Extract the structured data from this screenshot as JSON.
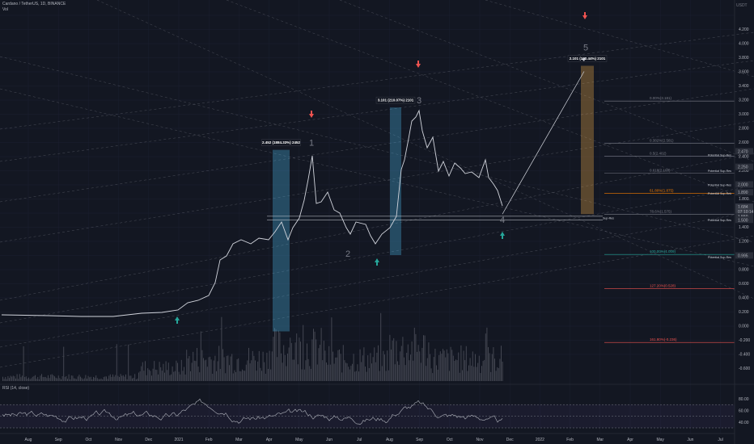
{
  "header": {
    "symbol_title": "Cardano / TetherUS, 1D, BINANCE",
    "volume_label": "Vol",
    "rsi_label": "RSI (14, close)"
  },
  "top_right": {
    "currency": "USDT"
  },
  "price_axis": {
    "ticks": [
      "4.200",
      "4.000",
      "3.800",
      "3.600",
      "3.400",
      "3.200",
      "3.000",
      "2.800",
      "2.600",
      "2.400",
      "2.200",
      "2.000",
      "1.800",
      "1.600",
      "1.400",
      "1.200",
      "1.000",
      "0.800",
      "0.600",
      "0.400",
      "0.200",
      "0.000",
      "-0.200",
      "-0.400",
      "-0.600"
    ],
    "tick_values": [
      4.2,
      4.0,
      3.8,
      3.6,
      3.4,
      3.2,
      3.0,
      2.8,
      2.6,
      2.4,
      2.2,
      2.0,
      1.8,
      1.6,
      1.4,
      1.2,
      1.0,
      0.8,
      0.6,
      0.4,
      0.2,
      0.0,
      -0.2,
      -0.4,
      -0.6
    ],
    "tags": [
      {
        "text": "2.470",
        "value": 2.47,
        "bg": "#2a2e39"
      },
      {
        "text": "2.250",
        "value": 2.25,
        "bg": "#2a2e39"
      },
      {
        "text": "2.000",
        "value": 2.0,
        "bg": "#2a2e39"
      },
      {
        "text": "1.890",
        "value": 1.89,
        "bg": "#2a2e39"
      },
      {
        "text": "1.684",
        "value": 1.684,
        "bg": "#363a45"
      },
      {
        "text": "07:10:14",
        "value": 1.62,
        "bg": "#363a45"
      },
      {
        "text": "1.550",
        "value": 1.55,
        "bg": "#2a2e39"
      },
      {
        "text": "1.500",
        "value": 1.5,
        "bg": "#2a2e39"
      },
      {
        "text": "0.995",
        "value": 0.995,
        "bg": "#2a2e39"
      }
    ]
  },
  "rsi_axis": {
    "ticks": [
      "80.00",
      "60.00",
      "40.00"
    ],
    "values": [
      80,
      60,
      40
    ]
  },
  "time_axis": {
    "labels": [
      "Aug",
      "Sep",
      "Oct",
      "Nov",
      "Dec",
      "2021",
      "Feb",
      "Mar",
      "Apr",
      "May",
      "Jun",
      "Jul",
      "Aug",
      "Sep",
      "Oct",
      "Nov",
      "Dec",
      "2022",
      "Feb",
      "Mar",
      "Apr",
      "May",
      "Jun",
      "Jul"
    ]
  },
  "fib_levels": [
    {
      "text": "0.00%(3.181)",
      "value": 3.181,
      "color": "#787b86"
    },
    {
      "text": "0.382%(2.581)",
      "value": 2.581,
      "color": "#787b86"
    },
    {
      "text": "0.5(2.402)",
      "value": 2.402,
      "color": "#787b86"
    },
    {
      "text": "0.618(2.160)",
      "value": 2.16,
      "color": "#787b86"
    },
    {
      "text": "61.80%(1.875)",
      "value": 1.875,
      "color": "#f57c00"
    },
    {
      "text": "78.6%(1.575)",
      "value": 1.575,
      "color": "#787b86"
    },
    {
      "text": "100.00%(1.009)",
      "value": 1.009,
      "color": "#26a69a"
    },
    {
      "text": "127.20%(0.528)",
      "value": 0.528,
      "color": "#ef5350"
    },
    {
      "text": "161.80%(-0.236)",
      "value": -0.236,
      "color": "#ef5350"
    }
  ],
  "notes": [
    {
      "text": "Potential Sup-Res",
      "value": 2.4
    },
    {
      "text": "Potential Sup-Res",
      "value": 2.18
    },
    {
      "text": "Potential Sup-Res",
      "value": 1.98
    },
    {
      "text": "Potential Sup-Res",
      "value": 1.86
    },
    {
      "text": "Potential Sup-Res",
      "value": 1.48
    },
    {
      "text": "Potential Sup-Res",
      "value": 0.955
    }
  ],
  "sup_res_label": "Sup-Res",
  "wave_labels": [
    {
      "text": "1",
      "price": 2.55
    },
    {
      "text": "2",
      "price": 0.98
    },
    {
      "text": "3",
      "price": 3.15
    },
    {
      "text": "4",
      "price": 1.46
    },
    {
      "text": "5",
      "price": 3.9
    }
  ],
  "boxes": [
    {
      "label": "2.452 (1884.33%) 2452",
      "top": 2.49,
      "bottom": -0.08,
      "fill": "#4fc3f7"
    },
    {
      "label": "3.101 (210.07%) 2101",
      "top": 3.09,
      "bottom": 1.0,
      "fill": "#4fc3f7"
    },
    {
      "label": "2.101 (122.44%) 2101",
      "top": 3.68,
      "bottom": 1.58,
      "fill": "#ffb74d"
    }
  ],
  "colors": {
    "background": "#131722",
    "price_line": "#d1d4dc",
    "up_arrow": "#26a69a",
    "down_arrow": "#ef5350",
    "volume": "#434651",
    "rsi_line": "#b2b5be"
  }
}
